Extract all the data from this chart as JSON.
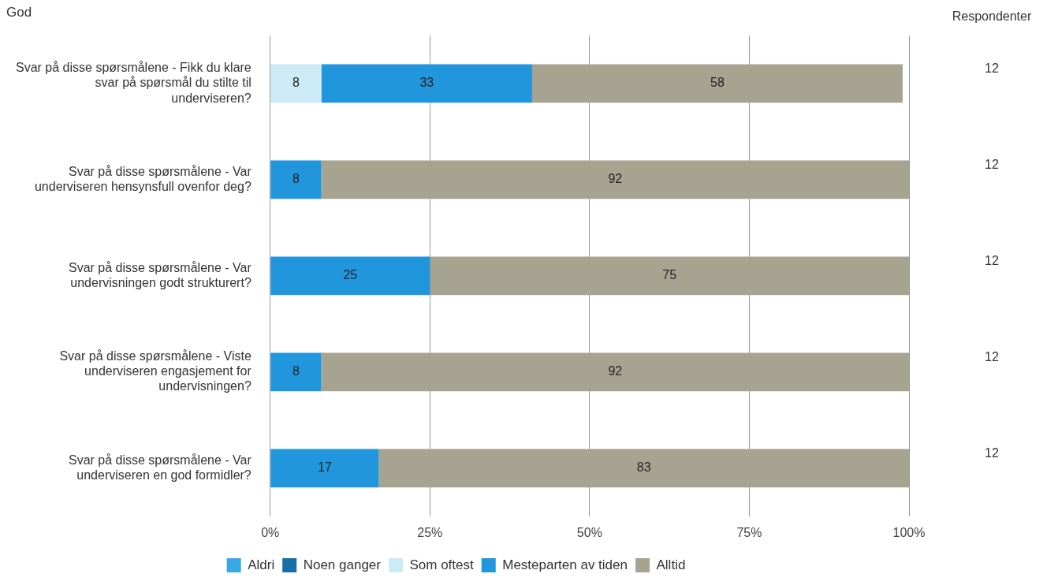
{
  "chart_data": {
    "type": "bar",
    "orientation": "horizontal",
    "stacked": true,
    "title": "God",
    "categories": [
      "Svar på disse spørsmålene - Fikk du klare svar på spørsmål du stilte til underviseren?",
      "Svar på disse spørsmålene - Var underviseren hensynsfull ovenfor deg?",
      "Svar på disse spørsmålene - Var undervisningen godt strukturert?",
      "Svar på disse spørsmålene - Viste underviseren engasjement for undervisningen?",
      "Svar på disse spørsmålene - Var underviseren en god formidler?"
    ],
    "series": [
      {
        "name": "Aldri",
        "color": "#3aa8e6",
        "values": [
          null,
          null,
          null,
          null,
          null
        ]
      },
      {
        "name": "Noen ganger",
        "color": "#176fa6",
        "values": [
          null,
          null,
          null,
          null,
          null
        ]
      },
      {
        "name": "Som oftest",
        "color": "#cdeaf7",
        "values": [
          8,
          null,
          null,
          null,
          null
        ]
      },
      {
        "name": "Mesteparten av tiden",
        "color": "#2196dd",
        "values": [
          33,
          8,
          25,
          8,
          17
        ]
      },
      {
        "name": "Alltid",
        "color": "#a6a391",
        "values": [
          58,
          92,
          75,
          92,
          83
        ]
      }
    ],
    "xlim": [
      0,
      100
    ],
    "xticks": [
      {
        "value": 0,
        "label": "0%"
      },
      {
        "value": 25,
        "label": "25%"
      },
      {
        "value": 50,
        "label": "50%"
      },
      {
        "value": 75,
        "label": "75%"
      },
      {
        "value": 100,
        "label": "100%"
      }
    ],
    "grid": "x",
    "legend": "bottom",
    "data_labels": true,
    "annotations": [
      "Respondenter",
      "12",
      "12",
      "12",
      "12",
      "12"
    ]
  }
}
